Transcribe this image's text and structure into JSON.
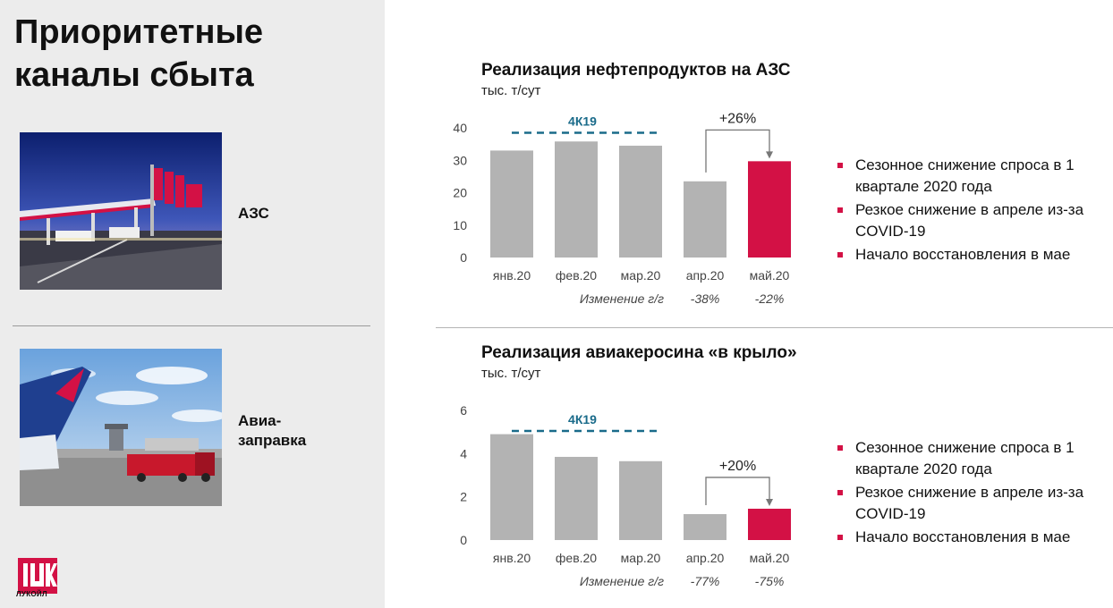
{
  "page": {
    "title_line1": "Приоритетные",
    "title_line2": "каналы сбыта"
  },
  "channels": [
    {
      "label_line1": "АЗС",
      "label_line2": ""
    },
    {
      "label_line1": "Авиа-",
      "label_line2": "заправка"
    }
  ],
  "logo": {
    "text": "ЛУКОЙЛ",
    "mark": "LUK",
    "color": "#d31145"
  },
  "colors": {
    "bar": "#b3b3b3",
    "highlight": "#d31145",
    "reference": "#1a6b8a"
  },
  "chart_data": [
    {
      "type": "bar",
      "title": "Реализация нефтепродуктов на АЗС",
      "ylabel": "тыс. т/сут",
      "categories": [
        "янв.20",
        "фев.20",
        "мар.20",
        "апр.20",
        "май.20"
      ],
      "values": [
        33,
        35.8,
        34.5,
        23.5,
        29.7
      ],
      "highlight_index": 4,
      "ylim": [
        0,
        40
      ],
      "yticks": [
        0,
        10,
        20,
        30,
        40
      ],
      "reference": {
        "label": "4К19",
        "value": 38.5
      },
      "change_label": "+26%",
      "yoy_label": "Изменение г/г",
      "yoy": [
        "",
        "",
        "",
        "-38%",
        "-22%"
      ],
      "bullets": [
        "Сезонное снижение спроса в 1 квартале 2020 года",
        "Резкое снижение в апреле из-за COVID-19",
        "Начало восстановления в мае"
      ]
    },
    {
      "type": "bar",
      "title": "Реализация авиакеросина «в крыло»",
      "ylabel": "тыс. т/сут",
      "categories": [
        "янв.20",
        "фев.20",
        "мар.20",
        "апр.20",
        "май.20"
      ],
      "values": [
        4.9,
        3.85,
        3.65,
        1.2,
        1.45
      ],
      "highlight_index": 4,
      "ylim": [
        0,
        6
      ],
      "yticks": [
        0,
        2,
        4,
        6
      ],
      "reference": {
        "label": "4К19",
        "value": 5.05
      },
      "change_label": "+20%",
      "yoy_label": "Изменение г/г",
      "yoy": [
        "",
        "",
        "",
        "-77%",
        "-75%"
      ],
      "bullets": [
        "Сезонное снижение спроса в 1 квартале 2020 года",
        "Резкое снижение в апреле из-за COVID-19",
        "Начало восстановления в мае"
      ]
    }
  ]
}
